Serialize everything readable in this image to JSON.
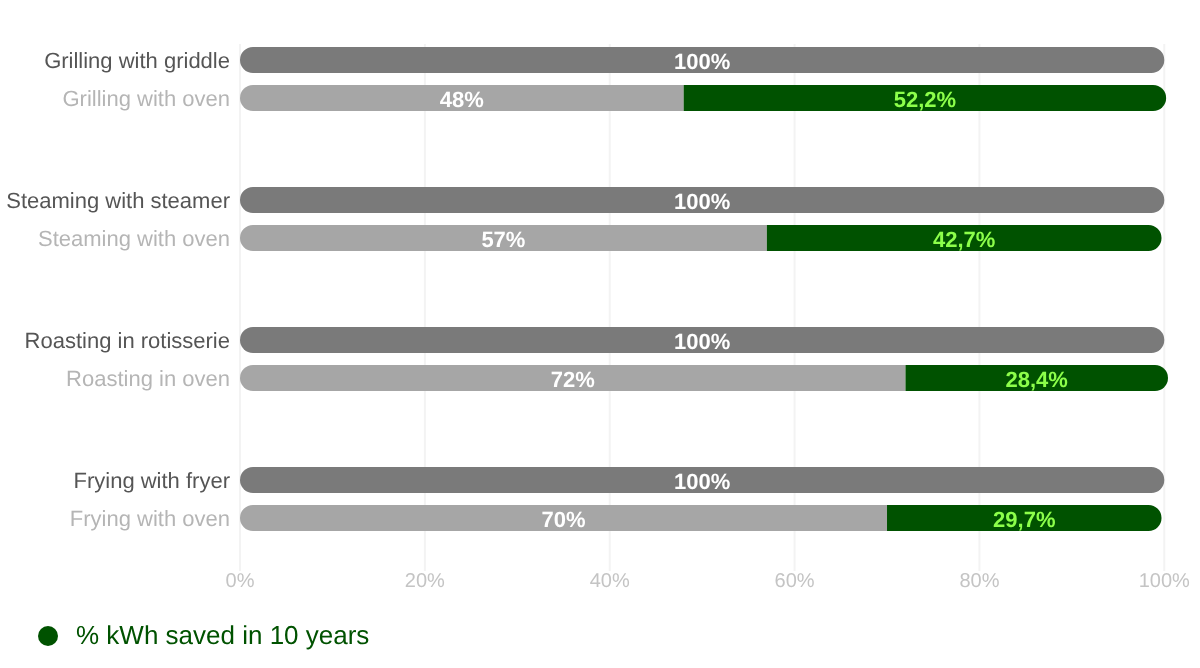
{
  "chart_data": {
    "type": "bar",
    "orientation": "horizontal",
    "stacked": true,
    "categories": [
      "Grilling with griddle",
      "Grilling with oven",
      "Steaming with steamer",
      "Steaming with oven",
      "Roasting in rotisserie",
      "Roasting in oven",
      "Frying with fryer",
      "Frying with oven"
    ],
    "series": [
      {
        "colors": [
          "#7a7a7a",
          "#a6a6a6",
          "#7a7a7a",
          "#a6a6a6",
          "#7a7a7a",
          "#a6a6a6",
          "#7a7a7a",
          "#a6a6a6"
        ],
        "values": [
          100,
          48,
          100,
          57,
          100,
          72,
          100,
          70
        ],
        "value_labels": [
          "100%",
          "48%",
          "100%",
          "57%",
          "100%",
          "72%",
          "100%",
          "70%"
        ]
      },
      {
        "name": "% kWh saved in 10 years",
        "color": "#005200",
        "values": [
          null,
          52.2,
          null,
          42.7,
          null,
          28.4,
          null,
          29.7
        ],
        "value_labels": [
          null,
          "52,2%",
          null,
          "42,7%",
          null,
          "28,4%",
          null,
          "29,7%"
        ]
      }
    ],
    "xlim": [
      0,
      100.4
    ],
    "xticks": [
      {
        "value": 0,
        "label": "0%"
      },
      {
        "value": 20,
        "label": "20%"
      },
      {
        "value": 40,
        "label": "40%"
      },
      {
        "value": 60,
        "label": "60%"
      },
      {
        "value": 80,
        "label": "80%"
      },
      {
        "value": 100,
        "label": "100%"
      }
    ],
    "grid": "x",
    "legend": "bottom left"
  }
}
